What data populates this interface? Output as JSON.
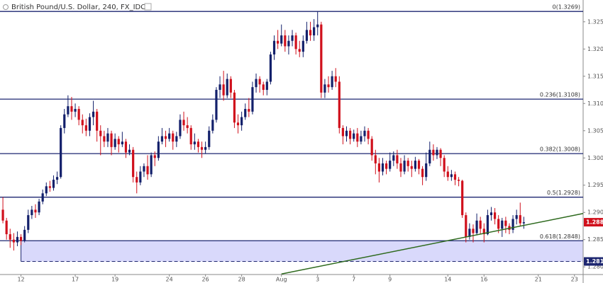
{
  "chart_data": {
    "type": "candlestick",
    "title": "British Pound/U.S. Dollar, 240, FX_IDC",
    "ylim": [
      1.2786,
      1.329
    ],
    "yticks": [
      {
        "value": 1.28,
        "label": "1.2800"
      },
      {
        "value": 1.285,
        "label": "1.2850"
      },
      {
        "value": 1.29,
        "label": "1.2900"
      },
      {
        "value": 1.295,
        "label": "1.2950"
      },
      {
        "value": 1.3,
        "label": "1.3000"
      },
      {
        "value": 1.305,
        "label": "1.3050"
      },
      {
        "value": 1.31,
        "label": "1.3100"
      },
      {
        "value": 1.315,
        "label": "1.3150"
      },
      {
        "value": 1.32,
        "label": "1.3200"
      },
      {
        "value": 1.325,
        "label": "1.3250"
      }
    ],
    "xlim": [
      -0.8,
      160.4
    ],
    "xticks": [
      {
        "value": 5,
        "label": "12"
      },
      {
        "value": 20,
        "label": "17"
      },
      {
        "value": 31,
        "label": "19"
      },
      {
        "value": 46,
        "label": "24"
      },
      {
        "value": 56,
        "label": "26"
      },
      {
        "value": 66,
        "label": "28"
      },
      {
        "value": 77,
        "label": "Aug"
      },
      {
        "value": 87,
        "label": "3"
      },
      {
        "value": 97,
        "label": "7"
      },
      {
        "value": 107,
        "label": "9"
      },
      {
        "value": 123,
        "label": "14"
      },
      {
        "value": 133,
        "label": "16"
      },
      {
        "value": 148,
        "label": "21"
      },
      {
        "value": 158,
        "label": "23"
      }
    ],
    "up_color": "#13206b",
    "down_color": "#d0101c",
    "candles": [
      [
        1.2905,
        1.2928,
        1.288,
        1.2885
      ],
      [
        1.2885,
        1.289,
        1.285,
        1.286
      ],
      [
        1.286,
        1.287,
        1.2835,
        1.285
      ],
      [
        1.285,
        1.2862,
        1.283,
        1.2845
      ],
      [
        1.2845,
        1.2865,
        1.2838,
        1.2855
      ],
      [
        1.2855,
        1.286,
        1.284,
        1.2848
      ],
      [
        1.2848,
        1.2875,
        1.2845,
        1.2868
      ],
      [
        1.2868,
        1.2905,
        1.2862,
        1.2895
      ],
      [
        1.2895,
        1.2912,
        1.2888,
        1.2905
      ],
      [
        1.2905,
        1.2915,
        1.289,
        1.29
      ],
      [
        1.29,
        1.2925,
        1.2895,
        1.292
      ],
      [
        1.292,
        1.2942,
        1.2915,
        1.2935
      ],
      [
        1.2935,
        1.2955,
        1.293,
        1.2948
      ],
      [
        1.2948,
        1.2958,
        1.2938,
        1.2945
      ],
      [
        1.2945,
        1.2968,
        1.294,
        1.296
      ],
      [
        1.296,
        1.2975,
        1.2952,
        1.2965
      ],
      [
        1.2965,
        1.306,
        1.2962,
        1.3055
      ],
      [
        1.3055,
        1.309,
        1.3045,
        1.308
      ],
      [
        1.308,
        1.3115,
        1.3075,
        1.3095
      ],
      [
        1.3095,
        1.3112,
        1.307,
        1.3085
      ],
      [
        1.3085,
        1.31,
        1.3075,
        1.309
      ],
      [
        1.309,
        1.3095,
        1.306,
        1.307
      ],
      [
        1.307,
        1.308,
        1.3045,
        1.306
      ],
      [
        1.306,
        1.3072,
        1.304,
        1.305
      ],
      [
        1.305,
        1.3082,
        1.304,
        1.3075
      ],
      [
        1.3075,
        1.3105,
        1.306,
        1.3085
      ],
      [
        1.3085,
        1.309,
        1.303,
        1.305
      ],
      [
        1.305,
        1.306,
        1.3005,
        1.304
      ],
      [
        1.304,
        1.305,
        1.302,
        1.303
      ],
      [
        1.303,
        1.3055,
        1.302,
        1.3045
      ],
      [
        1.3045,
        1.305,
        1.3005,
        1.302
      ],
      [
        1.302,
        1.3045,
        1.3015,
        1.3035
      ],
      [
        1.3035,
        1.304,
        1.301,
        1.3025
      ],
      [
        1.3025,
        1.3048,
        1.302,
        1.303
      ],
      [
        1.303,
        1.3035,
        1.3,
        1.301
      ],
      [
        1.301,
        1.3025,
        1.3005,
        1.3015
      ],
      [
        1.3015,
        1.302,
        1.2955,
        1.2965
      ],
      [
        1.2965,
        1.2975,
        1.2935,
        1.2955
      ],
      [
        1.2955,
        1.2985,
        1.295,
        1.2975
      ],
      [
        1.2975,
        1.299,
        1.2965,
        1.2985
      ],
      [
        1.2985,
        1.3005,
        1.296,
        1.297
      ],
      [
        1.297,
        1.301,
        1.2965,
        1.3005
      ],
      [
        1.3005,
        1.3012,
        1.2985,
        1.3
      ],
      [
        1.3,
        1.304,
        1.2995,
        1.303
      ],
      [
        1.303,
        1.3055,
        1.3025,
        1.304
      ],
      [
        1.304,
        1.305,
        1.302,
        1.3035
      ],
      [
        1.3035,
        1.3055,
        1.303,
        1.3045
      ],
      [
        1.3045,
        1.305,
        1.3015,
        1.303
      ],
      [
        1.303,
        1.3048,
        1.302,
        1.304
      ],
      [
        1.304,
        1.308,
        1.3035,
        1.307
      ],
      [
        1.307,
        1.3085,
        1.305,
        1.306
      ],
      [
        1.306,
        1.3075,
        1.3045,
        1.3055
      ],
      [
        1.3055,
        1.306,
        1.3015,
        1.3025
      ],
      [
        1.3025,
        1.3045,
        1.3015,
        1.303
      ],
      [
        1.303,
        1.3035,
        1.301,
        1.302
      ],
      [
        1.302,
        1.303,
        1.3,
        1.3015
      ],
      [
        1.3015,
        1.303,
        1.3008,
        1.302
      ],
      [
        1.302,
        1.3058,
        1.3015,
        1.305
      ],
      [
        1.305,
        1.308,
        1.3045,
        1.307
      ],
      [
        1.307,
        1.313,
        1.3065,
        1.3125
      ],
      [
        1.3125,
        1.315,
        1.311,
        1.3135
      ],
      [
        1.3135,
        1.316,
        1.3105,
        1.3115
      ],
      [
        1.3115,
        1.3155,
        1.311,
        1.3145
      ],
      [
        1.3145,
        1.315,
        1.311,
        1.312
      ],
      [
        1.312,
        1.3125,
        1.3055,
        1.3065
      ],
      [
        1.3065,
        1.308,
        1.3045,
        1.306
      ],
      [
        1.306,
        1.3085,
        1.305,
        1.3075
      ],
      [
        1.3075,
        1.31,
        1.307,
        1.309
      ],
      [
        1.309,
        1.311,
        1.3075,
        1.3085
      ],
      [
        1.3085,
        1.314,
        1.308,
        1.313
      ],
      [
        1.313,
        1.3155,
        1.312,
        1.3145
      ],
      [
        1.3145,
        1.315,
        1.312,
        1.3135
      ],
      [
        1.3135,
        1.314,
        1.3115,
        1.3125
      ],
      [
        1.3125,
        1.3145,
        1.3115,
        1.314
      ],
      [
        1.314,
        1.3195,
        1.3135,
        1.319
      ],
      [
        1.319,
        1.3225,
        1.318,
        1.3215
      ],
      [
        1.3215,
        1.3235,
        1.32,
        1.321
      ],
      [
        1.321,
        1.3245,
        1.3205,
        1.3225
      ],
      [
        1.3225,
        1.3235,
        1.3195,
        1.3205
      ],
      [
        1.3205,
        1.3225,
        1.319,
        1.3215
      ],
      [
        1.3215,
        1.3235,
        1.3205,
        1.3225
      ],
      [
        1.3225,
        1.323,
        1.319,
        1.32
      ],
      [
        1.32,
        1.3215,
        1.3185,
        1.3195
      ],
      [
        1.3195,
        1.3225,
        1.3185,
        1.3215
      ],
      [
        1.3215,
        1.325,
        1.321,
        1.3235
      ],
      [
        1.3235,
        1.325,
        1.3215,
        1.3225
      ],
      [
        1.3225,
        1.3255,
        1.3215,
        1.324
      ],
      [
        1.324,
        1.3269,
        1.3225,
        1.3245
      ],
      [
        1.3245,
        1.325,
        1.311,
        1.312
      ],
      [
        1.312,
        1.3145,
        1.311,
        1.3135
      ],
      [
        1.3135,
        1.315,
        1.312,
        1.313
      ],
      [
        1.313,
        1.316,
        1.3125,
        1.315
      ],
      [
        1.315,
        1.3165,
        1.313,
        1.314
      ],
      [
        1.314,
        1.315,
        1.3045,
        1.3055
      ],
      [
        1.3055,
        1.306,
        1.3025,
        1.304
      ],
      [
        1.304,
        1.3058,
        1.303,
        1.305
      ],
      [
        1.305,
        1.3055,
        1.3025,
        1.3035
      ],
      [
        1.3035,
        1.3052,
        1.303,
        1.3045
      ],
      [
        1.3045,
        1.3055,
        1.302,
        1.303
      ],
      [
        1.303,
        1.305,
        1.3025,
        1.304
      ],
      [
        1.304,
        1.3058,
        1.303,
        1.305
      ],
      [
        1.305,
        1.3055,
        1.3025,
        1.3035
      ],
      [
        1.3035,
        1.304,
        1.2995,
        1.3005
      ],
      [
        1.3005,
        1.3015,
        1.297,
        1.299
      ],
      [
        1.299,
        1.3,
        1.2955,
        1.2975
      ],
      [
        1.2975,
        1.3,
        1.2968,
        1.299
      ],
      [
        1.299,
        1.2995,
        1.297,
        1.298
      ],
      [
        1.298,
        1.301,
        1.2975,
        1.2995
      ],
      [
        1.2995,
        1.3012,
        1.2985,
        1.3005
      ],
      [
        1.3005,
        1.3015,
        1.298,
        1.299
      ],
      [
        1.299,
        1.3,
        1.2965,
        1.2975
      ],
      [
        1.2975,
        1.3005,
        1.297,
        1.2995
      ],
      [
        1.2995,
        1.3,
        1.2975,
        1.2985
      ],
      [
        1.2985,
        1.2995,
        1.2965,
        1.298
      ],
      [
        1.298,
        1.3002,
        1.2975,
        1.2995
      ],
      [
        1.2995,
        1.2998,
        1.297,
        1.298
      ],
      [
        1.298,
        1.2985,
        1.295,
        1.2965
      ],
      [
        1.2965,
        1.301,
        1.2958,
        1.299
      ],
      [
        1.299,
        1.303,
        1.2985,
        1.3015
      ],
      [
        1.3015,
        1.3025,
        1.2995,
        1.3005
      ],
      [
        1.3005,
        1.302,
        1.2998,
        1.3015
      ],
      [
        1.3015,
        1.3018,
        1.2985,
        1.3
      ],
      [
        1.3,
        1.3005,
        1.2965,
        1.2975
      ],
      [
        1.2975,
        1.2985,
        1.2958,
        1.2965
      ],
      [
        1.2965,
        1.2978,
        1.2958,
        1.297
      ],
      [
        1.297,
        1.2975,
        1.295,
        1.296
      ],
      [
        1.296,
        1.2965,
        1.2948,
        1.2958
      ],
      [
        1.2958,
        1.296,
        1.289,
        1.2895
      ],
      [
        1.2895,
        1.29,
        1.2845,
        1.2855
      ],
      [
        1.2855,
        1.288,
        1.285,
        1.287
      ],
      [
        1.287,
        1.2878,
        1.2845,
        1.2862
      ],
      [
        1.2862,
        1.2898,
        1.2858,
        1.2885
      ],
      [
        1.2885,
        1.2892,
        1.286,
        1.287
      ],
      [
        1.287,
        1.288,
        1.2845,
        1.286
      ],
      [
        1.286,
        1.2905,
        1.2858,
        1.2895
      ],
      [
        1.2895,
        1.291,
        1.2885,
        1.29
      ],
      [
        1.29,
        1.2908,
        1.2878,
        1.2888
      ],
      [
        1.2888,
        1.2895,
        1.2862,
        1.287
      ],
      [
        1.287,
        1.289,
        1.2855,
        1.2885
      ],
      [
        1.2885,
        1.2892,
        1.2862,
        1.2875
      ],
      [
        1.2875,
        1.288,
        1.286,
        1.2868
      ],
      [
        1.2868,
        1.2895,
        1.2862,
        1.2888
      ],
      [
        1.2888,
        1.2905,
        1.2878,
        1.2895
      ],
      [
        1.2895,
        1.2918,
        1.2875,
        1.288
      ],
      [
        1.288,
        1.2892,
        1.287,
        1.2882
      ]
    ],
    "levels": [
      {
        "value": 1.3269,
        "label": "0(1.3269)"
      },
      {
        "value": 1.3108,
        "label": "0.236(1.3108)"
      },
      {
        "value": 1.3008,
        "label": "0.382(1.3008)"
      },
      {
        "value": 1.2928,
        "label": "0.5(1.2928)"
      },
      {
        "value": 1.2848,
        "label": "0.618(1.2848)"
      }
    ],
    "level_color": "#1d2670",
    "zone": {
      "from": 1.2848,
      "to": 1.281,
      "start": 5,
      "label": "1.2810",
      "color": "#d9d9fb"
    },
    "trendline": {
      "x": [
        77,
        160.4
      ],
      "y": [
        1.2787,
        1.2898
      ],
      "color": "#2e6a1e"
    },
    "last_price": {
      "value": 1.2882,
      "label": "1.2882"
    }
  }
}
